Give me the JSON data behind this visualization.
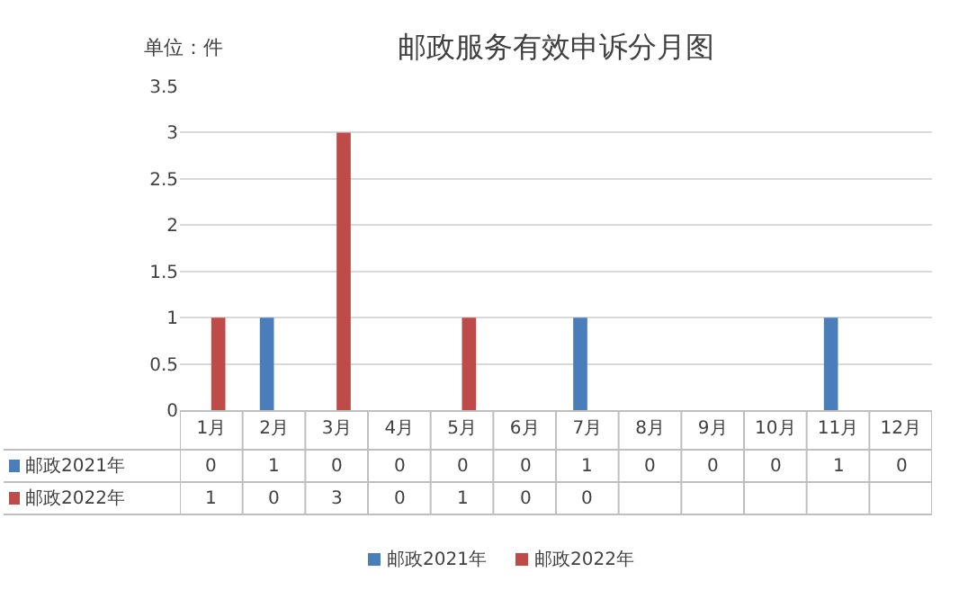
{
  "chart_data": {
    "type": "bar",
    "title": "邮政服务有效申诉分月图",
    "annotations": [
      "单位：件"
    ],
    "categories": [
      "1月",
      "2月",
      "3月",
      "4月",
      "5月",
      "6月",
      "7月",
      "8月",
      "9月",
      "10月",
      "11月",
      "12月"
    ],
    "series": [
      {
        "name": "邮政2021年",
        "color": "#4a7ebb",
        "values": [
          0,
          1,
          0,
          0,
          0,
          0,
          1,
          0,
          0,
          0,
          1,
          0
        ]
      },
      {
        "name": "邮政2022年",
        "color": "#be4b48",
        "values": [
          1,
          0,
          3,
          0,
          1,
          0,
          0,
          null,
          null,
          null,
          null,
          null
        ]
      }
    ],
    "ylim": [
      0,
      3.5
    ],
    "yticks": [
      0,
      0.5,
      1,
      1.5,
      2,
      2.5,
      3,
      3.5
    ],
    "grid": "y",
    "legend": "bottom",
    "data_labels": true
  }
}
